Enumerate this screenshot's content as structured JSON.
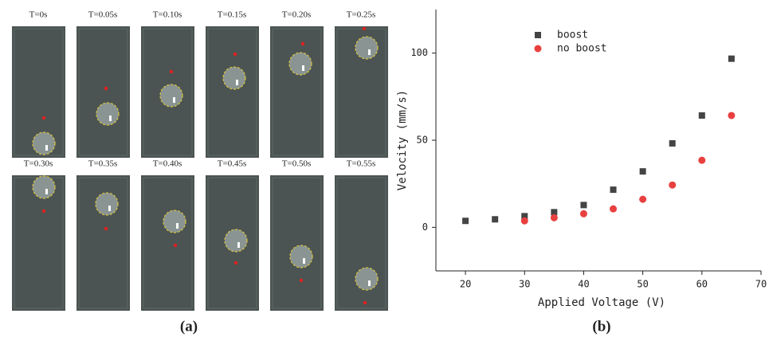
{
  "panel_a": {
    "frame_labels": [
      "T=0s",
      "T=0.05s",
      "T=0.10s",
      "T=0.15s",
      "T=0.20s",
      "T=0.25s",
      "T=0.30s",
      "T=0.35s",
      "T=0.40s",
      "T=0.45s",
      "T=0.50s",
      "T=0.55s"
    ],
    "label": "(a)"
  },
  "chart_data": {
    "type": "scatter",
    "label": "(b)",
    "x_label": "Applied Voltage (V)",
    "y_label": "Velocity (mm/s)",
    "xlim": [
      15,
      70
    ],
    "xticks": [
      20,
      30,
      40,
      50,
      60,
      70
    ],
    "ylim": [
      -25,
      125
    ],
    "yticks": [
      0,
      50,
      100
    ],
    "legend": "upper left",
    "grid": false,
    "series": [
      {
        "name": "boost",
        "color": "#444444",
        "marker": "square",
        "x": [
          20,
          25,
          30,
          35,
          40,
          45,
          50,
          55,
          60,
          65
        ],
        "values": [
          3.7,
          4.6,
          6.4,
          8.7,
          12.8,
          21.6,
          32.1,
          48.2,
          64.2,
          96.8
        ]
      },
      {
        "name": "no boost",
        "color": "#e8403f",
        "marker": "circle",
        "x": [
          30,
          35,
          40,
          45,
          50,
          55,
          60,
          65
        ],
        "values": [
          3.7,
          5.5,
          7.8,
          10.6,
          16.1,
          24.3,
          38.5,
          64.2
        ]
      }
    ]
  }
}
